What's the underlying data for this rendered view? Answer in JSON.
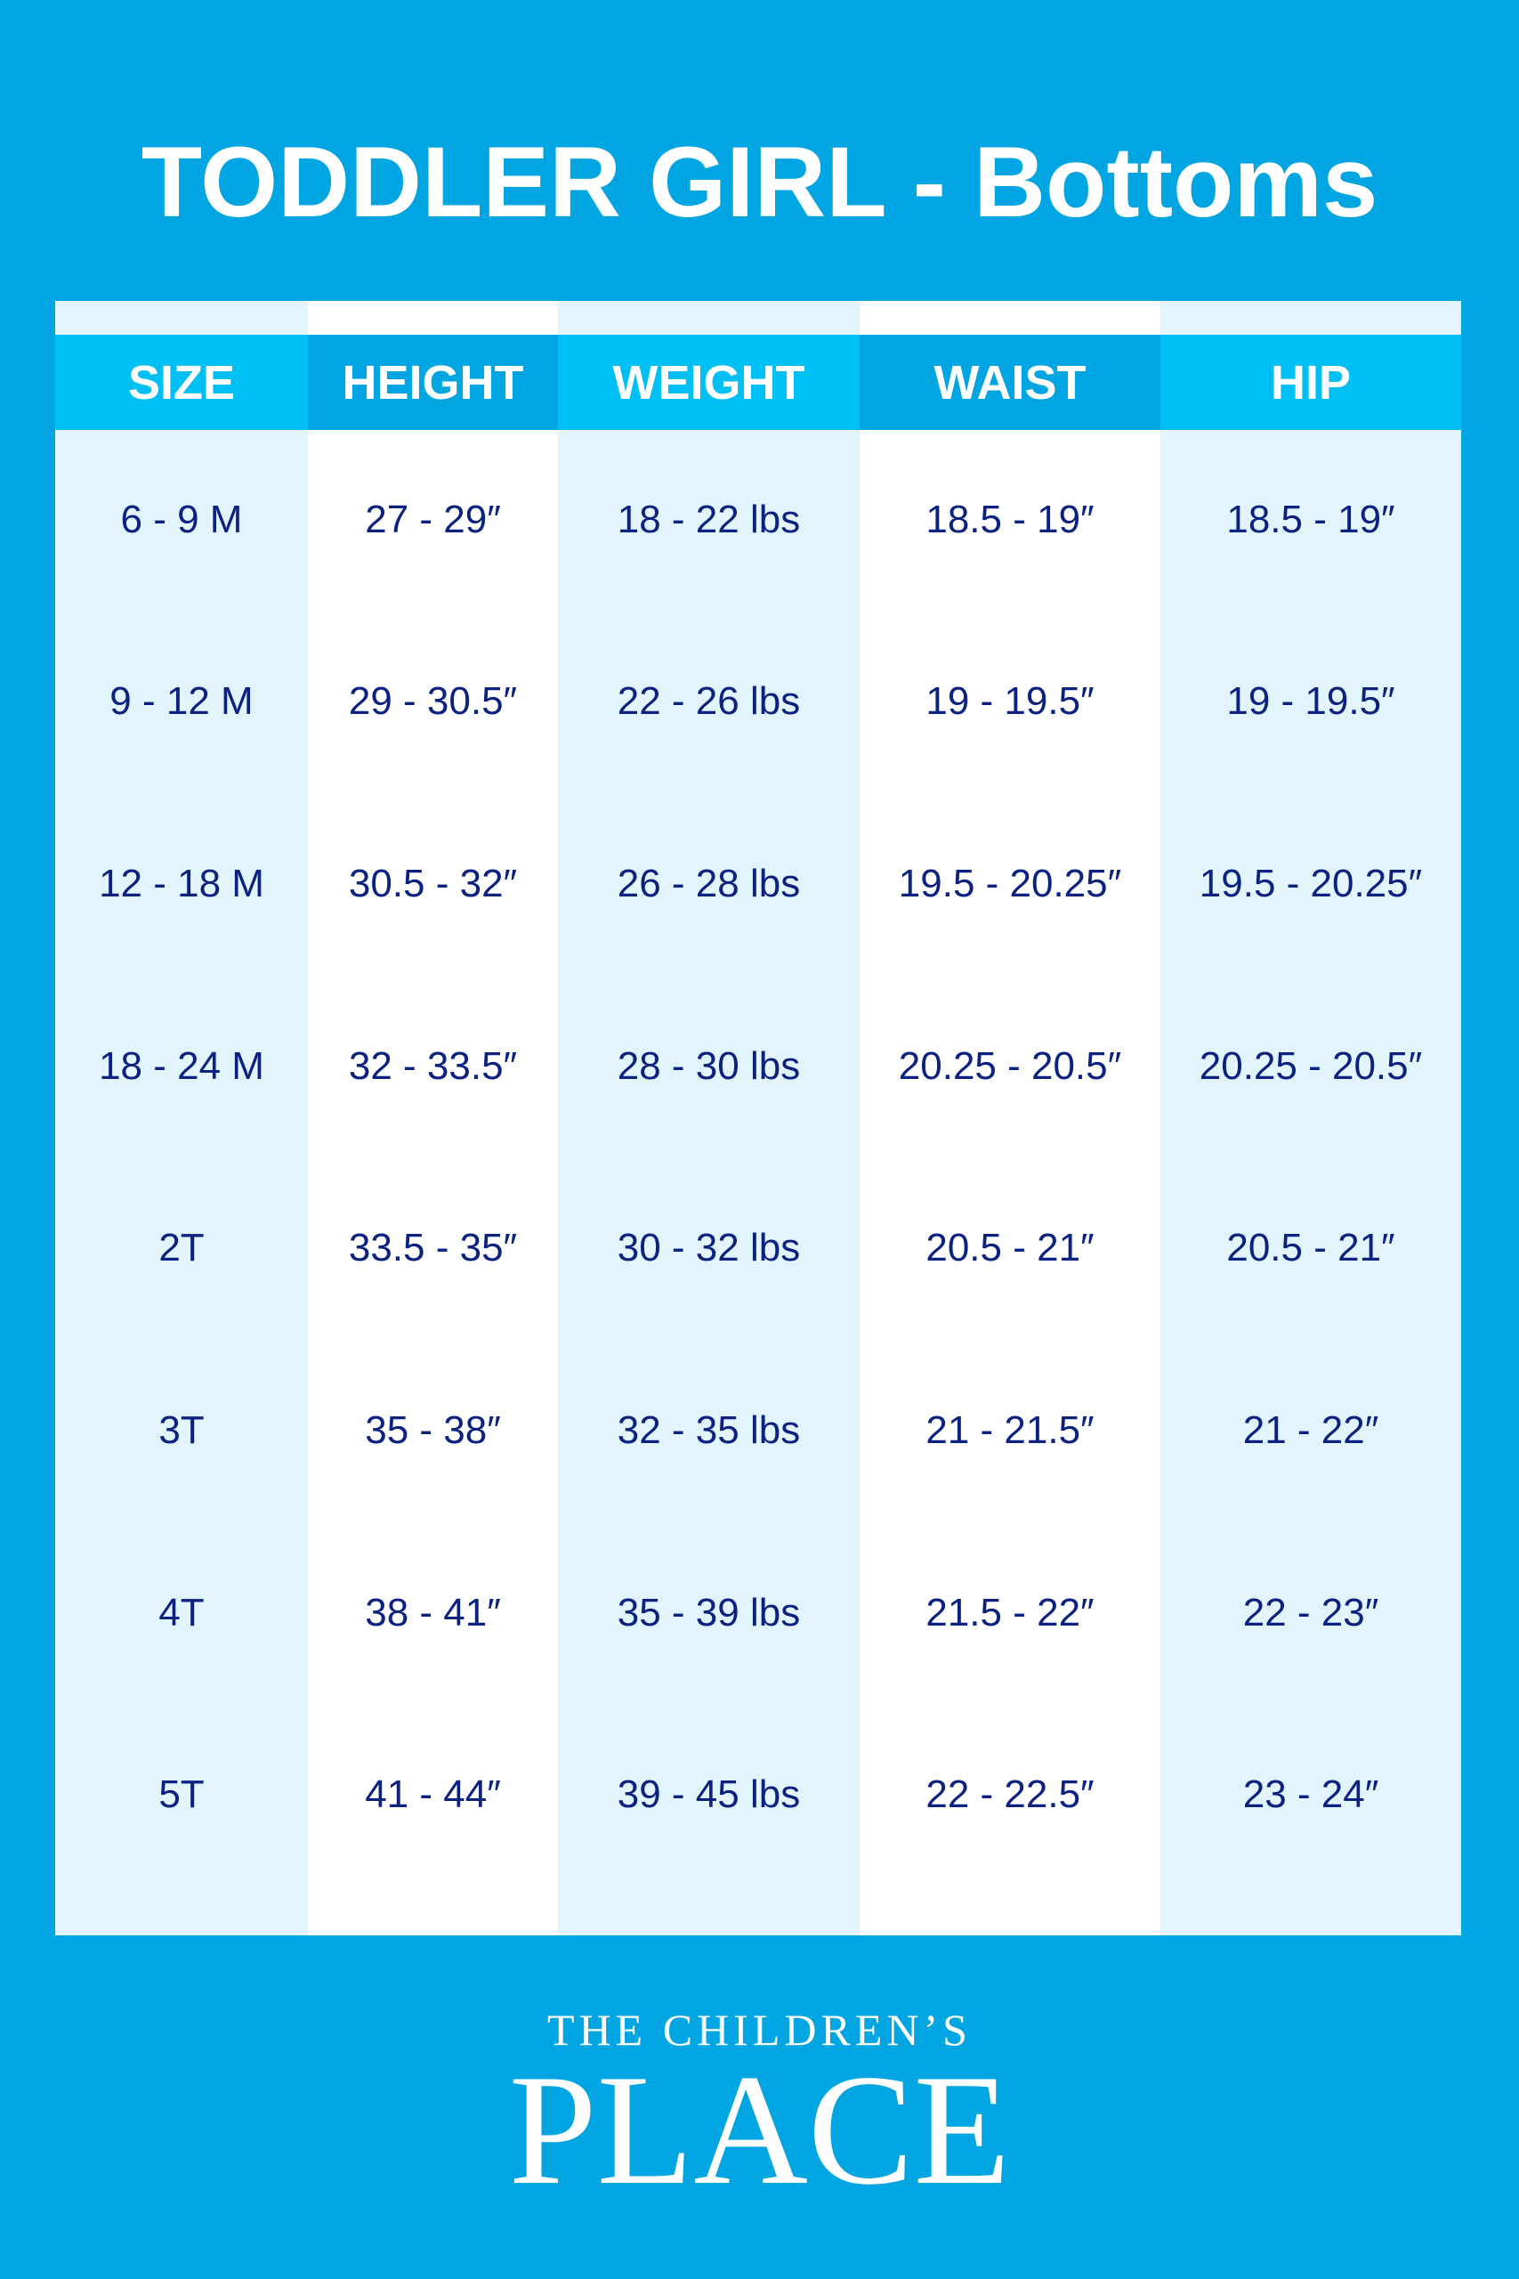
{
  "title": "TODDLER GIRL - Bottoms",
  "colors": {
    "background": "#00a5e1",
    "header_light": "#00bff3",
    "header_dark": "#00a5e1",
    "cell_light": "#e3f5fc",
    "text": "#0c2281"
  },
  "table": {
    "headers": [
      "SIZE",
      "HEIGHT",
      "WEIGHT",
      "WAIST",
      "HIP"
    ],
    "rows": [
      [
        "6 - 9 M",
        "27 - 29″",
        "18 - 22 lbs",
        "18.5 - 19″",
        "18.5 - 19″"
      ],
      [
        "9 - 12 M",
        "29 - 30.5″",
        "22 - 26 lbs",
        "19 - 19.5″",
        "19 - 19.5″"
      ],
      [
        "12  - 18 M",
        "30.5 - 32″",
        "26 - 28 lbs",
        "19.5 - 20.25″",
        "19.5 - 20.25″"
      ],
      [
        "18 - 24 M",
        "32 - 33.5″",
        "28 - 30 lbs",
        "20.25 - 20.5″",
        "20.25 - 20.5″"
      ],
      [
        "2T",
        "33.5 - 35″",
        "30 - 32 lbs",
        "20.5 - 21″",
        "20.5 - 21″"
      ],
      [
        "3T",
        "35 - 38″",
        "32 - 35 lbs",
        "21 - 21.5″",
        "21 - 22″"
      ],
      [
        "4T",
        "38 - 41″",
        "35 - 39 lbs",
        "21.5 - 22″",
        "22 - 23″"
      ],
      [
        "5T",
        "41 - 44″",
        "39 - 45 lbs",
        "22 - 22.5″",
        "23 - 24″"
      ]
    ]
  },
  "logo": {
    "line1": "THE CHILDREN’S",
    "line2": "PLACE"
  }
}
